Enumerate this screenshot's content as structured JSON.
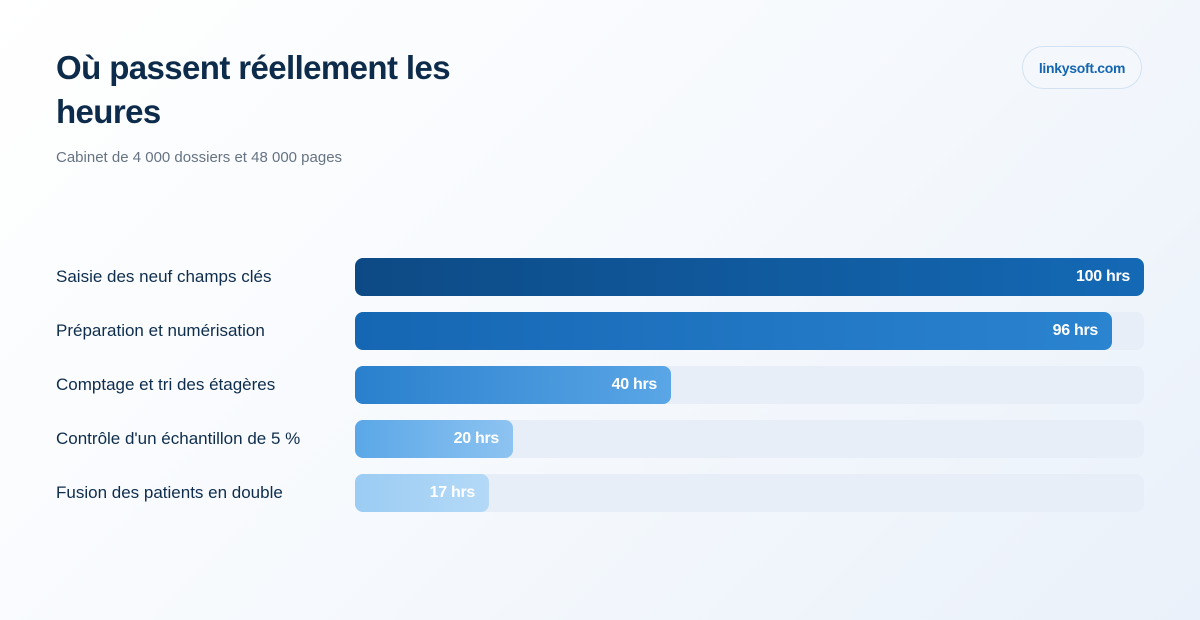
{
  "header": {
    "title": "Où passent réellement les heures",
    "subtitle": "Cabinet de 4 000 dossiers et 48 000 pages",
    "brand": "linkysoft.com"
  },
  "colors": {
    "title": "#0d2b4a",
    "label": "#0e2d4d",
    "track": "#e7eef8",
    "brand": "#1566b0",
    "bar_gradients": [
      [
        "#0d4a85",
        "#1469b5"
      ],
      [
        "#1566b3",
        "#2b84d0"
      ],
      [
        "#2a80cd",
        "#5aa6e6"
      ],
      [
        "#5aa7e7",
        "#8dc3f1"
      ],
      [
        "#9bccf3",
        "#b4d9f7"
      ]
    ]
  },
  "chart_data": {
    "type": "bar",
    "orientation": "horizontal",
    "title": "Où passent réellement les heures",
    "subtitle": "Cabinet de 4 000 dossiers et 48 000 pages",
    "categories": [
      "Saisie des neuf champs clés",
      "Préparation et numérisation",
      "Comptage et tri des étagères",
      "Contrôle d'un échantillon de 5 %",
      "Fusion des patients en double"
    ],
    "values": [
      100,
      96,
      40,
      20,
      17
    ],
    "value_labels": [
      "100 hrs",
      "96 hrs",
      "40 hrs",
      "20 hrs",
      "17 hrs"
    ],
    "xlim": [
      0,
      100
    ],
    "grid": false,
    "legend": "none"
  }
}
